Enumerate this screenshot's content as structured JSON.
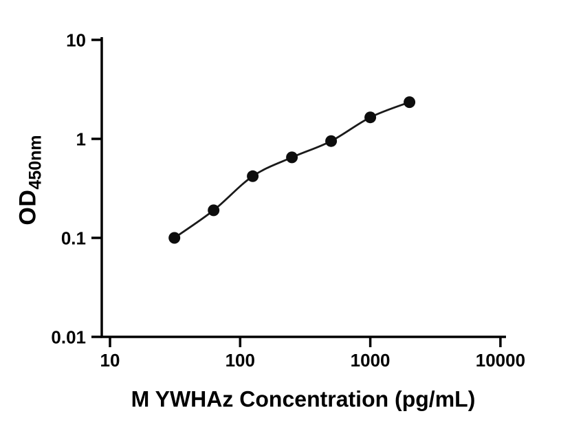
{
  "figure": {
    "background_color": "#ffffff",
    "axis_color": "#000000",
    "curve_color": "#1a1a1a",
    "point_color": "#0d0d0d"
  },
  "chart_data": {
    "type": "scatter",
    "title": "",
    "xlabel": "M YWHAz Concentration (pg/mL)",
    "ylabel": "OD450nm",
    "ylabel_main": "OD",
    "ylabel_sub": "450nm",
    "x_scale": "log10",
    "y_scale": "log10",
    "xlim": [
      10,
      10000
    ],
    "ylim": [
      0.01,
      10
    ],
    "x_tick_values": [
      10,
      100,
      1000,
      10000
    ],
    "x_tick_labels": [
      "10",
      "100",
      "1000",
      "10000"
    ],
    "y_tick_values": [
      10,
      1,
      0.1,
      0.01
    ],
    "y_tick_labels": [
      "10",
      "1",
      "0.1",
      "0.01"
    ],
    "grid": false,
    "legend": null,
    "fit_line": true,
    "points": [
      {
        "x": 31.25,
        "y": 0.1
      },
      {
        "x": 62.5,
        "y": 0.19
      },
      {
        "x": 125,
        "y": 0.42
      },
      {
        "x": 250,
        "y": 0.65
      },
      {
        "x": 500,
        "y": 0.95
      },
      {
        "x": 1000,
        "y": 1.65
      },
      {
        "x": 2000,
        "y": 2.35
      }
    ]
  }
}
